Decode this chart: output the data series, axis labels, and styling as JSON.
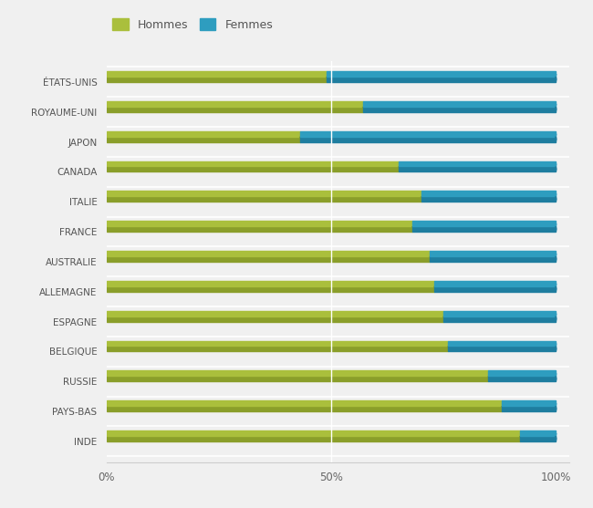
{
  "countries": [
    "ÉTATS-UNIS",
    "ROYAUME-UNI",
    "JAPON",
    "CANADA",
    "ITALIE",
    "FRANCE",
    "AUSTRALIE",
    "ALLEMAGNE",
    "ESPAGNE",
    "BELGIQUE",
    "RUSSIE",
    "PAYS-BAS",
    "INDE"
  ],
  "hommes": [
    49,
    57,
    43,
    65,
    70,
    68,
    72,
    73,
    75,
    76,
    85,
    88,
    92
  ],
  "femmes": [
    51,
    43,
    57,
    35,
    30,
    32,
    28,
    27,
    25,
    24,
    15,
    12,
    8
  ],
  "color_hommes": "#aabf3c",
  "color_hommes_dark": "#8a9e2a",
  "color_femmes": "#2e9dbf",
  "color_femmes_dark": "#1e7d9f",
  "background_color": "#f0f0f0",
  "grid_color": "#ffffff",
  "legend_labels": [
    "Hommes",
    "Femmes"
  ],
  "xlabel_values": [
    0,
    50,
    100
  ],
  "xlabel_ticks": [
    "0%",
    "50%",
    "100%"
  ],
  "bar_total": 100,
  "figsize": [
    6.5,
    5.57
  ],
  "dpi": 100
}
